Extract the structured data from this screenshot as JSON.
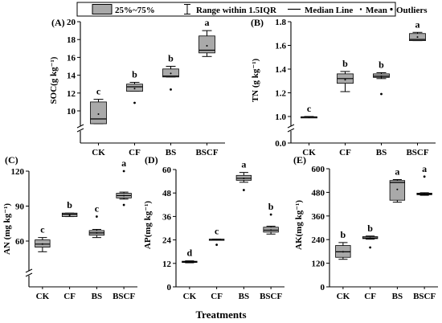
{
  "legend": {
    "items": [
      {
        "kind": "box",
        "label": "25%~75%"
      },
      {
        "kind": "whisker",
        "label": "Range within 1.5IQR"
      },
      {
        "kind": "line",
        "label": "Median Line"
      },
      {
        "kind": "mean-dot",
        "label": "Mean"
      },
      {
        "kind": "outlier-dot",
        "label": "Outliers"
      }
    ]
  },
  "x_axis_title": "Treatments",
  "colors": {
    "box_fill": "#a9a9a9",
    "stroke": "#000000"
  },
  "chart_data": [
    {
      "type": "box",
      "panel": "(A)",
      "ylabel": "SOC(g kg⁻¹)",
      "categories": [
        "CK",
        "CF",
        "BS",
        "BSCF"
      ],
      "ylim": [
        8,
        20
      ],
      "axis_break": true,
      "yticks": [
        "10",
        "12",
        "14",
        "16",
        "18",
        "20"
      ],
      "boxes": [
        {
          "q1": 9.2,
          "median": 9.5,
          "q3": 11.0,
          "low": 9.2,
          "high": 11.3,
          "mean": 9.8,
          "outliers": [],
          "letter": "c"
        },
        {
          "q1": 12.2,
          "median": 12.7,
          "q3": 13.0,
          "low": 12.2,
          "high": 13.2,
          "mean": 12.5,
          "outliers": [
            10.9
          ],
          "letter": "b"
        },
        {
          "q1": 13.8,
          "median": 13.9,
          "q3": 14.7,
          "low": 13.8,
          "high": 15.0,
          "mean": 14.2,
          "outliers": [
            12.4
          ],
          "letter": "b"
        },
        {
          "q1": 16.5,
          "median": 16.8,
          "q3": 18.4,
          "low": 16.1,
          "high": 19.0,
          "mean": 17.3,
          "outliers": [],
          "letter": "a"
        }
      ]
    },
    {
      "type": "box",
      "panel": "(B)",
      "ylabel": "TN (g kg⁻¹)",
      "categories": [
        "CK",
        "CF",
        "BS",
        "BSCF"
      ],
      "ylim": [
        0.0,
        1.8
      ],
      "axis_break": true,
      "yticks": [
        "0.0",
        "1.0",
        "1.2",
        "1.4",
        "1.6",
        "1.8"
      ],
      "boxes": [
        {
          "q1": 0.97,
          "median": 0.98,
          "q3": 0.99,
          "low": 0.96,
          "high": 1.0,
          "mean": 0.98,
          "outliers": [],
          "letter": "c"
        },
        {
          "q1": 1.28,
          "median": 1.32,
          "q3": 1.36,
          "low": 1.21,
          "high": 1.38,
          "mean": 1.31,
          "outliers": [],
          "letter": "b"
        },
        {
          "q1": 1.33,
          "median": 1.34,
          "q3": 1.36,
          "low": 1.32,
          "high": 1.37,
          "mean": 1.34,
          "outliers": [
            1.19
          ],
          "letter": "b"
        },
        {
          "q1": 1.64,
          "median": 1.65,
          "q3": 1.7,
          "low": 1.64,
          "high": 1.71,
          "mean": 1.67,
          "outliers": [],
          "letter": "a"
        }
      ]
    },
    {
      "type": "box",
      "panel": "(C)",
      "ylabel": "AN (mg kg⁻¹)",
      "categories": [
        "CK",
        "CF",
        "BS",
        "BSCF"
      ],
      "ylim": [
        30,
        120
      ],
      "axis_break": true,
      "yticks": [
        "60",
        "90",
        "120"
      ],
      "boxes": [
        {
          "q1": 56,
          "median": 58,
          "q3": 61,
          "low": 53,
          "high": 63,
          "mean": 58,
          "outliers": [],
          "letter": "c"
        },
        {
          "q1": 81,
          "median": 83,
          "q3": 84,
          "low": 81,
          "high": 84,
          "mean": 82,
          "outliers": [],
          "letter": "b"
        },
        {
          "q1": 65,
          "median": 67,
          "q3": 69,
          "low": 63,
          "high": 70,
          "mean": 67,
          "outliers": [
            81
          ],
          "letter": "c"
        },
        {
          "q1": 97,
          "median": 99,
          "q3": 101,
          "low": 96,
          "high": 102,
          "mean": 99,
          "outliers": [
            91,
            120
          ],
          "letter": "a"
        }
      ]
    },
    {
      "type": "box",
      "panel": "(D)",
      "ylabel": "AP(mg kg⁻¹)",
      "categories": [
        "CK",
        "CF",
        "BS",
        "BSCF"
      ],
      "ylim": [
        0,
        60
      ],
      "axis_break": false,
      "yticks": [
        "0",
        "12",
        "24",
        "36",
        "48",
        "60"
      ],
      "boxes": [
        {
          "q1": 12.5,
          "median": 12.8,
          "q3": 13.1,
          "low": 12.3,
          "high": 13.3,
          "mean": 12.8,
          "outliers": [],
          "letter": "d"
        },
        {
          "q1": 24.0,
          "median": 24.2,
          "q3": 24.4,
          "low": 24.0,
          "high": 24.4,
          "mean": 24.2,
          "outliers": [
            21.5
          ],
          "letter": "c"
        },
        {
          "q1": 54.5,
          "median": 55.5,
          "q3": 57.0,
          "low": 53.5,
          "high": 58.5,
          "mean": 55.5,
          "outliers": [
            49.5
          ],
          "letter": "a"
        },
        {
          "q1": 28.0,
          "median": 29.0,
          "q3": 30.5,
          "low": 27.0,
          "high": 31.0,
          "mean": 29.0,
          "outliers": [
            37.0
          ],
          "letter": "b"
        }
      ]
    },
    {
      "type": "box",
      "panel": "(E)",
      "ylabel": "AK(mg kg⁻¹)",
      "categories": [
        "CK",
        "CF",
        "BS",
        "BSCF"
      ],
      "ylim": [
        0,
        600
      ],
      "axis_break": false,
      "yticks": [
        "0",
        "120",
        "240",
        "360",
        "480",
        "600"
      ],
      "boxes": [
        {
          "q1": 150,
          "median": 178,
          "q3": 210,
          "low": 140,
          "high": 225,
          "mean": 178,
          "outliers": [],
          "letter": "b"
        },
        {
          "q1": 245,
          "median": 248,
          "q3": 255,
          "low": 242,
          "high": 258,
          "mean": 248,
          "outliers": [
            200
          ],
          "letter": "b"
        },
        {
          "q1": 440,
          "median": 530,
          "q3": 540,
          "low": 430,
          "high": 545,
          "mean": 495,
          "outliers": [],
          "letter": "a"
        },
        {
          "q1": 468,
          "median": 472,
          "q3": 476,
          "low": 465,
          "high": 478,
          "mean": 472,
          "outliers": [
            560
          ],
          "letter": "a"
        }
      ]
    }
  ]
}
